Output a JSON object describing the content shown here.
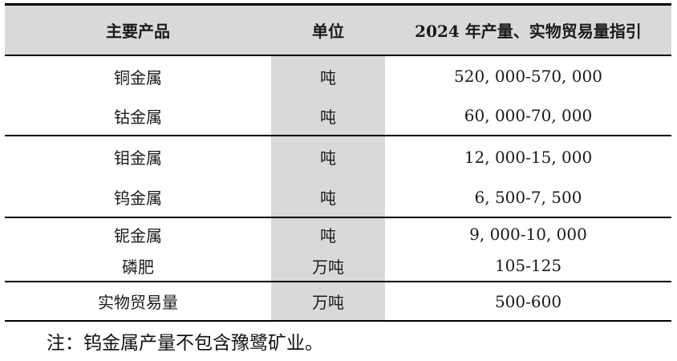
{
  "table": {
    "columns": {
      "product": "主要产品",
      "unit": "单位",
      "guidance": "2024 年产量、实物贸易量指引"
    },
    "rows": [
      {
        "product": "铜金属",
        "unit": "吨",
        "guidance": "520, 000-570, 000"
      },
      {
        "product": "钴金属",
        "unit": "吨",
        "guidance": "60, 000-70, 000"
      },
      {
        "product": "钼金属",
        "unit": "吨",
        "guidance": "12, 000-15, 000"
      },
      {
        "product": "钨金属",
        "unit": "吨",
        "guidance": "6, 500-7, 500"
      },
      {
        "product": "铌金属",
        "unit": "吨",
        "guidance": "9, 000-10, 000"
      },
      {
        "product": "磷肥",
        "unit": "万吨",
        "guidance": "105-125"
      },
      {
        "product": "实物贸易量",
        "unit": "万吨",
        "guidance": "500-600"
      }
    ]
  },
  "note": "注：钨金属产量不包含豫鹭矿业。",
  "colors": {
    "header_background": "#d9d9d9",
    "unit_column_background": "#d9d9d9",
    "border": "#000000",
    "text": "#1a1a1a"
  }
}
